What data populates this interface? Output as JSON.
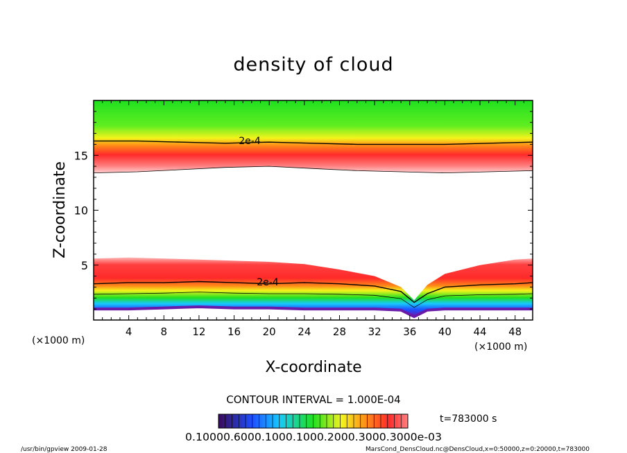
{
  "chart_data": {
    "type": "heatmap",
    "title": "density of cloud",
    "xlabel": "X-coordinate",
    "ylabel": "Z-coordinate",
    "x_unit_left": "(×1000 m)",
    "x_unit_right": "(×1000 m)",
    "xlim": [
      0,
      50
    ],
    "ylim": [
      0,
      20
    ],
    "xticks": [
      4,
      8,
      12,
      16,
      20,
      24,
      28,
      32,
      36,
      40,
      44,
      48
    ],
    "yticks": [
      5,
      10,
      15
    ],
    "contour_labels": [
      "2e-4",
      "2e-4"
    ],
    "contour_interval": "CONTOUR INTERVAL = 1.000E-04",
    "time_label": "t=783000 s",
    "colorbar_labels": "0.10000.6000.1000.1000.2000.3000.3000e-03",
    "colors": {
      "purple": "#6a1aa8",
      "blue": "#1e50ff",
      "cyan": "#18c8ff",
      "green": "#20e020",
      "yellow": "#f4f41c",
      "orange": "#ff8c18",
      "red": "#ff2a2a",
      "pink": "#ffb6b6"
    },
    "upper_layer": {
      "contour_2e4_z": [
        16.3,
        16.3,
        16.2,
        16.1,
        16.2,
        16.1,
        16.0,
        16.0,
        16.0,
        16.1,
        16.2
      ],
      "base_z": [
        13.4,
        13.5,
        13.7,
        13.9,
        14.0,
        13.8,
        13.6,
        13.5,
        13.4,
        13.5,
        13.6
      ]
    },
    "lower_layer": {
      "x": [
        0,
        4,
        8,
        12,
        16,
        20,
        24,
        28,
        32,
        35,
        36.5,
        38,
        40,
        44,
        48,
        50
      ],
      "top_z": [
        5.6,
        5.7,
        5.6,
        5.5,
        5.4,
        5.3,
        5.1,
        4.6,
        4.0,
        3.0,
        1.8,
        3.2,
        4.2,
        5.0,
        5.5,
        5.6
      ],
      "contour_2e4_z": [
        3.3,
        3.4,
        3.4,
        3.5,
        3.4,
        3.3,
        3.4,
        3.3,
        3.1,
        2.6,
        1.6,
        2.4,
        3.0,
        3.2,
        3.3,
        3.4
      ],
      "bottom_z": [
        1.0,
        1.0,
        1.1,
        1.2,
        1.1,
        1.1,
        1.0,
        1.0,
        1.0,
        0.9,
        0.3,
        0.9,
        1.0,
        1.0,
        1.0,
        1.0
      ]
    }
  },
  "footer": {
    "left": "/usr/bin/gpview  2009-01-28",
    "right": "MarsCond_DensCloud.nc@DensCloud,x=0:50000,z=0:20000,t=783000"
  }
}
